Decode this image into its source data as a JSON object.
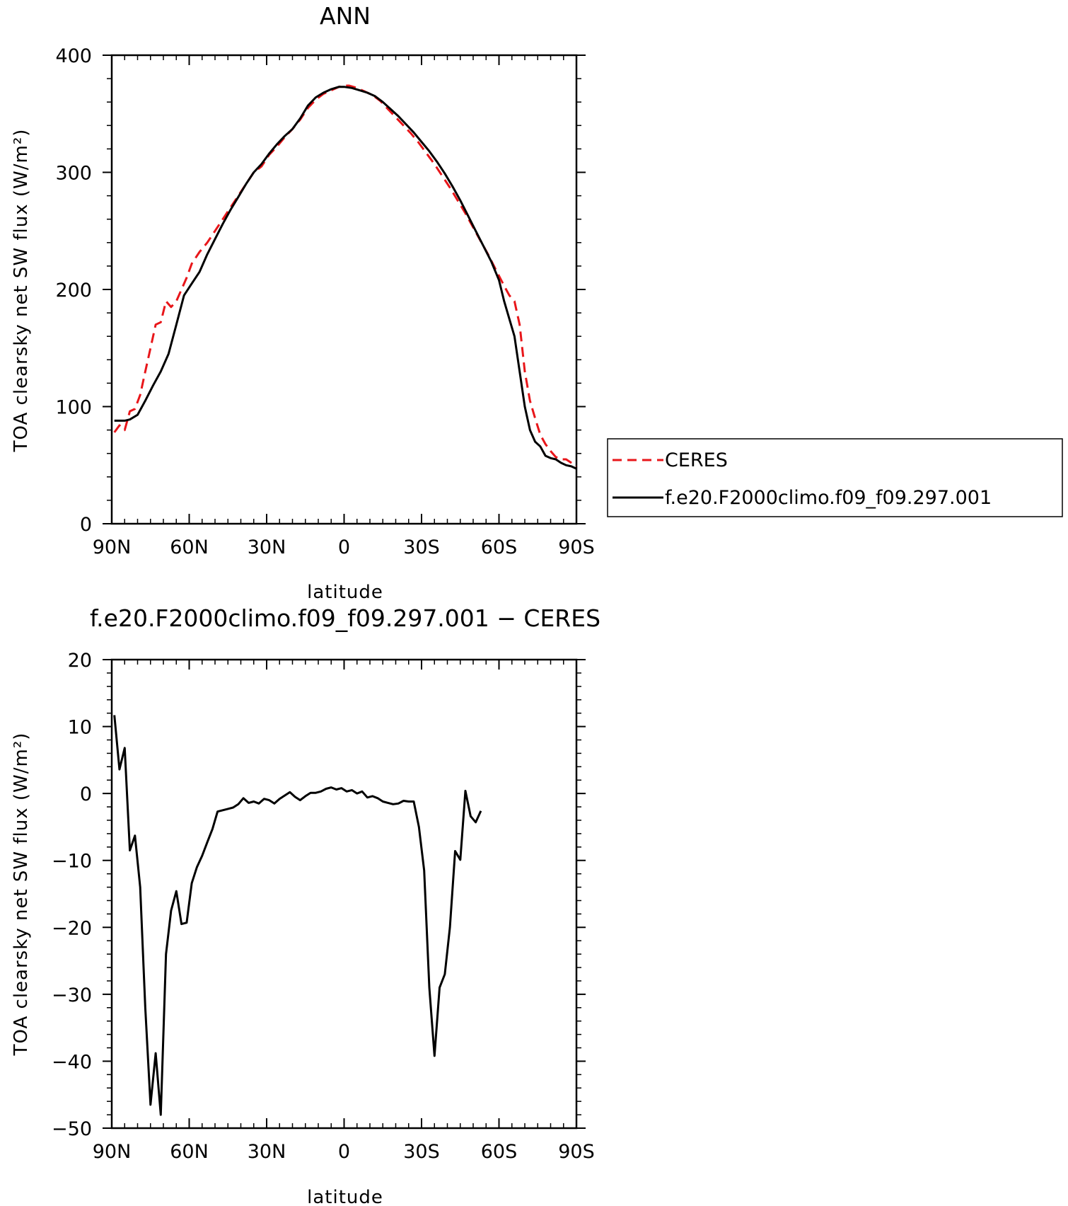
{
  "chart_data": [
    {
      "type": "line",
      "title": "ANN",
      "xlabel": "latitude",
      "ylabel": "TOA clearsky net SW flux (W/m²)",
      "xlim": [
        90,
        -90
      ],
      "ylim": [
        0,
        400
      ],
      "xticks": [
        {
          "value": 90,
          "label": "90N"
        },
        {
          "value": 60,
          "label": "60N"
        },
        {
          "value": 30,
          "label": "30N"
        },
        {
          "value": 0,
          "label": "0"
        },
        {
          "value": -30,
          "label": "30S"
        },
        {
          "value": -60,
          "label": "60S"
        },
        {
          "value": -90,
          "label": "90S"
        }
      ],
      "yticks": [
        0,
        100,
        200,
        300,
        400
      ],
      "legend": {
        "placement": "right"
      },
      "series": [
        {
          "name": "CERES",
          "color": "#e8161a",
          "dash": "dashed",
          "points": [
            [
              89,
              78
            ],
            [
              87,
              84
            ],
            [
              85,
              80
            ],
            [
              83,
              96
            ],
            [
              81,
              98
            ],
            [
              79,
              110
            ],
            [
              77,
              130
            ],
            [
              75,
              150
            ],
            [
              73,
              170
            ],
            [
              71,
              172
            ],
            [
              69,
              190
            ],
            [
              67,
              185
            ],
            [
              65,
              190
            ],
            [
              63,
              200
            ],
            [
              61,
              210
            ],
            [
              59,
              222
            ],
            [
              56,
              232
            ],
            [
              53,
              240
            ],
            [
              50,
              250
            ],
            [
              47,
              260
            ],
            [
              44,
              270
            ],
            [
              41,
              280
            ],
            [
              38,
              290
            ],
            [
              35,
              300
            ],
            [
              32,
              305
            ],
            [
              29,
              315
            ],
            [
              26,
              322
            ],
            [
              23,
              330
            ],
            [
              20,
              337
            ],
            [
              17,
              345
            ],
            [
              14,
              355
            ],
            [
              11,
              362
            ],
            [
              8,
              367
            ],
            [
              5,
              370
            ],
            [
              2,
              373
            ],
            [
              0,
              374
            ],
            [
              -2,
              374
            ],
            [
              -5,
              372
            ],
            [
              -8,
              369
            ],
            [
              -11,
              366
            ],
            [
              -14,
              361
            ],
            [
              -17,
              354
            ],
            [
              -20,
              347
            ],
            [
              -23,
              340
            ],
            [
              -26,
              333
            ],
            [
              -29,
              325
            ],
            [
              -32,
              316
            ],
            [
              -35,
              307
            ],
            [
              -38,
              297
            ],
            [
              -41,
              287
            ],
            [
              -44,
              276
            ],
            [
              -47,
              265
            ],
            [
              -50,
              253
            ],
            [
              -53,
              241
            ],
            [
              -56,
              229
            ],
            [
              -59,
              216
            ],
            [
              -62,
              203
            ],
            [
              -64,
              195
            ],
            [
              -66,
              190
            ],
            [
              -68,
              170
            ],
            [
              -70,
              130
            ],
            [
              -72,
              105
            ],
            [
              -74,
              90
            ],
            [
              -76,
              76
            ],
            [
              -78,
              68
            ],
            [
              -80,
              62
            ],
            [
              -82,
              57
            ],
            [
              -84,
              55
            ],
            [
              -86,
              55
            ],
            [
              -88,
              52
            ],
            [
              -90,
              49
            ]
          ]
        },
        {
          "name": "f.e20.F2000climo.f09_f09.297.001",
          "color": "#000000",
          "dash": "solid",
          "points": [
            [
              89,
              88
            ],
            [
              87,
              88
            ],
            [
              85,
              88
            ],
            [
              83,
              89
            ],
            [
              80,
              93
            ],
            [
              77,
              105
            ],
            [
              74,
              118
            ],
            [
              71,
              130
            ],
            [
              68,
              145
            ],
            [
              65,
              170
            ],
            [
              62,
              195
            ],
            [
              59,
              205
            ],
            [
              56,
              215
            ],
            [
              53,
              230
            ],
            [
              50,
              243
            ],
            [
              47,
              256
            ],
            [
              44,
              268
            ],
            [
              41,
              279
            ],
            [
              38,
              290
            ],
            [
              35,
              300
            ],
            [
              32,
              307
            ],
            [
              29,
              316
            ],
            [
              26,
              324
            ],
            [
              23,
              331
            ],
            [
              20,
              337
            ],
            [
              17,
              346
            ],
            [
              14,
              357
            ],
            [
              11,
              364
            ],
            [
              8,
              368
            ],
            [
              5,
              371
            ],
            [
              2,
              373
            ],
            [
              0,
              373
            ],
            [
              -3,
              372
            ],
            [
              -6,
              370
            ],
            [
              -9,
              368
            ],
            [
              -12,
              365
            ],
            [
              -15,
              360
            ],
            [
              -18,
              354
            ],
            [
              -21,
              348
            ],
            [
              -24,
              341
            ],
            [
              -27,
              334
            ],
            [
              -30,
              326
            ],
            [
              -33,
              318
            ],
            [
              -36,
              309
            ],
            [
              -39,
              299
            ],
            [
              -42,
              288
            ],
            [
              -45,
              276
            ],
            [
              -48,
              263
            ],
            [
              -51,
              250
            ],
            [
              -54,
              237
            ],
            [
              -57,
              224
            ],
            [
              -60,
              208
            ],
            [
              -62,
              190
            ],
            [
              -64,
              175
            ],
            [
              -66,
              160
            ],
            [
              -68,
              130
            ],
            [
              -70,
              100
            ],
            [
              -72,
              80
            ],
            [
              -74,
              70
            ],
            [
              -76,
              66
            ],
            [
              -78,
              58
            ],
            [
              -80,
              56
            ],
            [
              -82,
              55
            ],
            [
              -84,
              52
            ],
            [
              -86,
              50
            ],
            [
              -88,
              49
            ],
            [
              -90,
              47
            ]
          ]
        }
      ]
    },
    {
      "type": "line",
      "title": "f.e20.F2000climo.f09_f09.297.001 − CERES",
      "xlabel": "latitude",
      "ylabel": "TOA clearsky net SW flux (W/m²)",
      "xlim": [
        90,
        -90
      ],
      "ylim": [
        -50,
        20
      ],
      "xticks": [
        {
          "value": 90,
          "label": "90N"
        },
        {
          "value": 60,
          "label": "60N"
        },
        {
          "value": 30,
          "label": "30N"
        },
        {
          "value": 0,
          "label": "0"
        },
        {
          "value": -30,
          "label": "30S"
        },
        {
          "value": -60,
          "label": "60S"
        },
        {
          "value": -90,
          "label": "90S"
        }
      ],
      "yticks": [
        -50,
        -40,
        -30,
        -20,
        -10,
        0,
        10,
        20
      ],
      "series": [
        {
          "color": "#000000",
          "dash": "solid",
          "points": [
            [
              89,
              11.7
            ],
            [
              87,
              3.6
            ],
            [
              85,
              6.8
            ],
            [
              83,
              -8.5
            ],
            [
              81,
              -6.3
            ],
            [
              79,
              -14
            ],
            [
              77,
              -32
            ],
            [
              75,
              -46.5
            ],
            [
              73,
              -38.8
            ],
            [
              71,
              -48
            ],
            [
              69,
              -24
            ],
            [
              67,
              -17.5
            ],
            [
              65,
              -14.6
            ],
            [
              63,
              -19.5
            ],
            [
              61,
              -19.3
            ],
            [
              59,
              -13.4
            ],
            [
              57,
              -11
            ],
            [
              55,
              -9.3
            ],
            [
              53,
              -7.3
            ],
            [
              51,
              -5.3
            ],
            [
              49,
              -2.7
            ],
            [
              45,
              -2.3
            ],
            [
              43,
              -2.1
            ],
            [
              41,
              -1.6
            ],
            [
              39,
              -0.7
            ],
            [
              37,
              -1.4
            ],
            [
              35,
              -1.2
            ],
            [
              33,
              -1.5
            ],
            [
              31,
              -0.8
            ],
            [
              29,
              -1
            ],
            [
              27,
              -1.5
            ],
            [
              25,
              -0.8
            ],
            [
              23,
              -0.3
            ],
            [
              21,
              0.2
            ],
            [
              19,
              -0.5
            ],
            [
              17,
              -1
            ],
            [
              15,
              -0.4
            ],
            [
              13,
              0.1
            ],
            [
              11,
              0.1
            ],
            [
              9,
              0.3
            ],
            [
              7,
              0.7
            ],
            [
              5,
              0.9
            ],
            [
              3,
              0.6
            ],
            [
              1,
              0.8
            ],
            [
              -1,
              0.3
            ],
            [
              -3,
              0.5
            ],
            [
              -5,
              0
            ],
            [
              -7,
              0.3
            ],
            [
              -9,
              -0.6
            ],
            [
              -11,
              -0.4
            ],
            [
              -13,
              -0.7
            ],
            [
              -15,
              -1.2
            ],
            [
              -17,
              -1.4
            ],
            [
              -19,
              -1.6
            ],
            [
              -21,
              -1.5
            ],
            [
              -23,
              -1.1
            ],
            [
              -25,
              -1.2
            ],
            [
              -27,
              -1.2
            ],
            [
              -29,
              -5
            ],
            [
              -31,
              -11.5
            ],
            [
              -33,
              -29
            ],
            [
              -35,
              -39.2
            ],
            [
              -37,
              -29
            ],
            [
              -39,
              -27
            ],
            [
              -41,
              -20
            ],
            [
              -43,
              -8.6
            ],
            [
              -45,
              -9.9
            ],
            [
              -47,
              0.4
            ],
            [
              -49,
              -3.4
            ],
            [
              -51,
              -4.3
            ],
            [
              -53,
              -2.6
            ]
          ]
        }
      ]
    }
  ]
}
